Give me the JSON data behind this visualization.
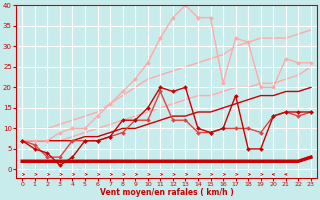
{
  "title": "",
  "xlabel": "Vent moyen/en rafales ( km/h )",
  "ylabel": "",
  "xlim": [
    -0.5,
    23.5
  ],
  "ylim": [
    -2,
    40
  ],
  "ytick_vals": [
    0,
    5,
    10,
    15,
    20,
    25,
    30,
    35,
    40
  ],
  "xtick_vals": [
    0,
    1,
    2,
    3,
    4,
    5,
    6,
    7,
    8,
    9,
    10,
    11,
    12,
    13,
    14,
    15,
    16,
    17,
    18,
    19,
    20,
    21,
    22,
    23
  ],
  "bg_color": "#c8ecec",
  "grid_color": "#ffffff",
  "lines": [
    {
      "x": [
        0,
        1,
        2,
        3,
        4,
        5,
        6,
        7,
        8,
        9,
        10,
        11,
        12,
        13,
        14,
        15,
        16,
        17,
        18,
        19,
        20,
        21,
        22,
        23
      ],
      "y": [
        2,
        2,
        2,
        2,
        2,
        2,
        2,
        2,
        2,
        2,
        2,
        2,
        2,
        2,
        2,
        2,
        2,
        2,
        2,
        2,
        2,
        2,
        2,
        3
      ],
      "color": "#cc0000",
      "lw": 2.5,
      "marker": null,
      "ms": 0,
      "zorder": 3
    },
    {
      "x": [
        0,
        1,
        2,
        3,
        4,
        5,
        6,
        7,
        8,
        9,
        10,
        11,
        12,
        13,
        14,
        15,
        16,
        17,
        18,
        19,
        20,
        21,
        22,
        23
      ],
      "y": [
        7,
        5,
        4,
        1,
        3,
        7,
        7,
        8,
        12,
        12,
        15,
        20,
        19,
        20,
        10,
        9,
        10,
        18,
        5,
        5,
        13,
        14,
        14,
        14
      ],
      "color": "#cc0000",
      "lw": 1.0,
      "marker": "D",
      "ms": 2.0,
      "zorder": 5
    },
    {
      "x": [
        0,
        1,
        2,
        3,
        4,
        5,
        6,
        7,
        8,
        9,
        10,
        11,
        12,
        13,
        14,
        15,
        16,
        17,
        18,
        19,
        20,
        21,
        22,
        23
      ],
      "y": [
        7,
        7,
        7,
        7,
        7,
        8,
        8,
        9,
        10,
        10,
        11,
        12,
        13,
        13,
        14,
        14,
        15,
        16,
        17,
        18,
        18,
        19,
        19,
        20
      ],
      "color": "#cc0000",
      "lw": 1.0,
      "marker": null,
      "ms": 0,
      "zorder": 2
    },
    {
      "x": [
        0,
        1,
        2,
        3,
        4,
        5,
        6,
        7,
        8,
        9,
        10,
        11,
        12,
        13,
        14,
        15,
        16,
        17,
        18,
        19,
        20,
        21,
        22,
        23
      ],
      "y": [
        7,
        6,
        3,
        3,
        7,
        7,
        7,
        8,
        9,
        12,
        12,
        19,
        12,
        12,
        9,
        9,
        10,
        10,
        10,
        9,
        13,
        14,
        13,
        14
      ],
      "color": "#dd4444",
      "lw": 1.0,
      "marker": "D",
      "ms": 2.0,
      "zorder": 4
    },
    {
      "x": [
        0,
        1,
        2,
        3,
        4,
        5,
        6,
        7,
        8,
        9,
        10,
        11,
        12,
        13,
        14,
        15,
        16,
        17,
        18,
        19,
        20,
        21,
        22,
        23
      ],
      "y": [
        10,
        10,
        10,
        11,
        12,
        13,
        14,
        16,
        18,
        20,
        22,
        23,
        24,
        25,
        26,
        27,
        28,
        30,
        31,
        32,
        32,
        32,
        33,
        34
      ],
      "color": "#ffaaaa",
      "lw": 1.0,
      "marker": null,
      "ms": 0,
      "zorder": 1
    },
    {
      "x": [
        0,
        1,
        2,
        3,
        4,
        5,
        6,
        7,
        8,
        9,
        10,
        11,
        12,
        13,
        14,
        15,
        16,
        17,
        18,
        19,
        20,
        21,
        22,
        23
      ],
      "y": [
        7,
        7,
        7,
        7,
        8,
        9,
        10,
        11,
        12,
        13,
        14,
        15,
        16,
        17,
        18,
        18,
        19,
        20,
        20,
        21,
        21,
        22,
        23,
        25
      ],
      "color": "#ffaaaa",
      "lw": 1.0,
      "marker": null,
      "ms": 0,
      "zorder": 1
    },
    {
      "x": [
        0,
        1,
        2,
        3,
        4,
        5,
        6,
        7,
        8,
        9,
        10,
        11,
        12,
        13,
        14,
        15,
        16,
        17,
        18,
        19,
        20,
        21,
        22,
        23
      ],
      "y": [
        7,
        7,
        7,
        9,
        10,
        10,
        13,
        16,
        19,
        22,
        26,
        32,
        37,
        40,
        37,
        37,
        21,
        32,
        31,
        20,
        20,
        27,
        26,
        26
      ],
      "color": "#ffaaaa",
      "lw": 1.0,
      "marker": "D",
      "ms": 2.0,
      "zorder": 2
    }
  ],
  "arrow_color": "#cc0000",
  "xlabel_color": "#cc0000",
  "tick_color": "#cc0000",
  "spine_color": "#cc0000"
}
